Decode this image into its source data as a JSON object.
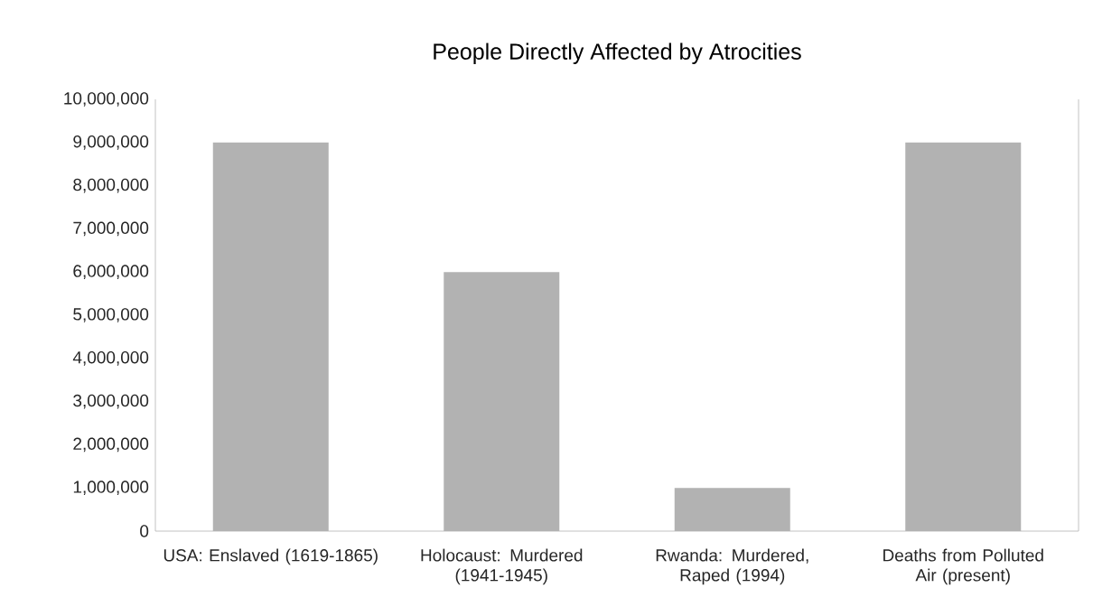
{
  "chart_data": {
    "type": "bar",
    "title": "People Directly Affected by Atrocities",
    "categories": [
      "USA: Enslaved (1619-1865)",
      "Holocaust: Murdered (1941-1945)",
      "Rwanda: Murdered, Raped (1994)",
      "Deaths from Polluted Air (present)"
    ],
    "values": [
      9000000,
      6000000,
      1000000,
      9000000
    ],
    "color": "#b2b2b2",
    "ylim": [
      0,
      10000000
    ],
    "yticks": [
      0,
      {
        "value": 1000000,
        "label": "1,000,000"
      },
      {
        "value": 2000000,
        "label": "2,000,000"
      },
      {
        "value": 3000000,
        "label": "3,000,000"
      },
      {
        "value": 4000000,
        "label": "4,000,000"
      },
      {
        "value": 5000000,
        "label": "5,000,000"
      },
      {
        "value": 6000000,
        "label": "6,000,000"
      },
      {
        "value": 7000000,
        "label": "7,000,000"
      },
      {
        "value": 8000000,
        "label": "8,000,000"
      },
      {
        "value": 9000000,
        "label": "9,000,000"
      },
      {
        "value": 10000000,
        "label": "10,000,000"
      }
    ]
  }
}
